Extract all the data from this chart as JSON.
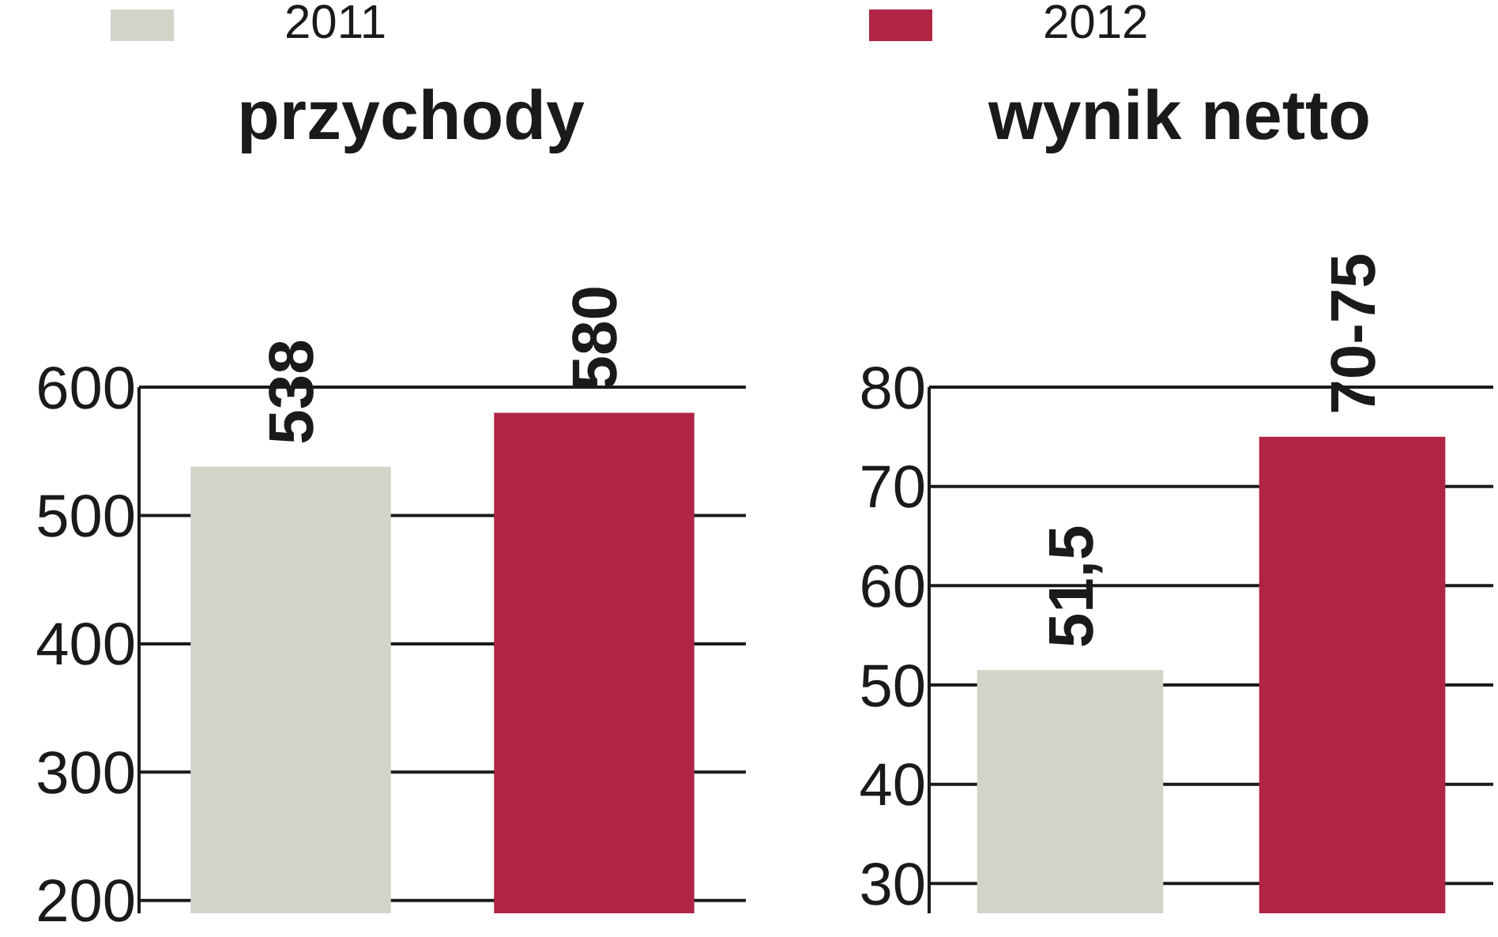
{
  "chart_data": [
    {
      "type": "bar",
      "title": "przychody",
      "categories": [
        null
      ],
      "legend": "top",
      "grid": "y",
      "series": [
        {
          "name": "2011",
          "color": "#d3d3c8",
          "values": [
            538
          ],
          "value_labels": [
            "538"
          ]
        },
        {
          "name": "2012",
          "color": "#b02444",
          "values": [
            580
          ],
          "value_labels": [
            "580"
          ]
        }
      ],
      "ylim": [
        190,
        600
      ],
      "yticks": [
        200,
        300,
        400,
        500,
        600
      ]
    },
    {
      "type": "bar",
      "title": "wynik netto",
      "categories": [
        null
      ],
      "grid": "y",
      "series": [
        {
          "color": "#d3d3c8",
          "values": [
            51.5
          ],
          "value_labels": [
            "51,5"
          ]
        },
        {
          "color": "#b02444",
          "values": [
            75
          ],
          "value_labels": [
            "70-75"
          ]
        }
      ],
      "ylim": [
        27,
        80
      ],
      "yticks": [
        30,
        40,
        50,
        60,
        70,
        80
      ]
    }
  ]
}
